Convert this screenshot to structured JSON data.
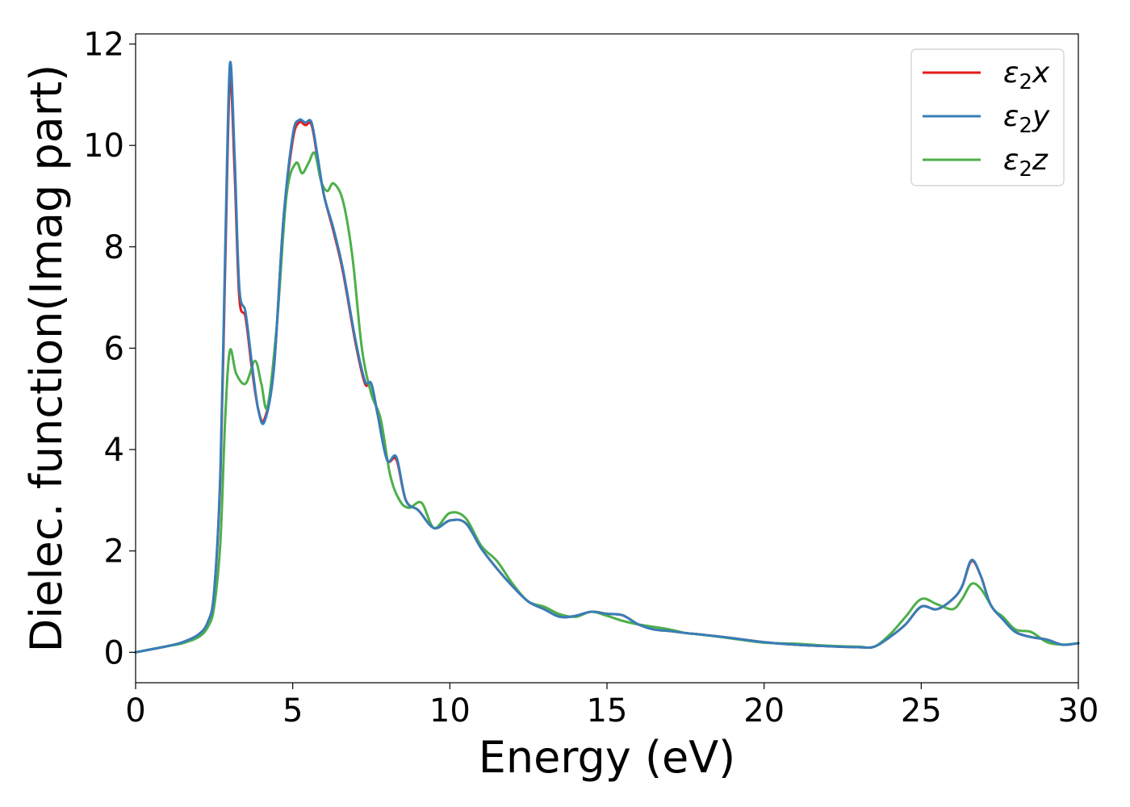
{
  "chart_data": {
    "type": "line",
    "xlabel": "Energy (eV)",
    "ylabel": "Dielec. function(Imag part)",
    "xlim": [
      0,
      30
    ],
    "ylim": [
      -0.6,
      12.2
    ],
    "xticks": [
      0,
      5,
      10,
      15,
      20,
      25,
      30
    ],
    "yticks": [
      0,
      2,
      4,
      6,
      8,
      10,
      12
    ],
    "grid": false,
    "legend_position": "top-right",
    "series": [
      {
        "name": "ε2x",
        "legend": {
          "base": "ε",
          "sub": "2",
          "tail": "x"
        },
        "color": "#e41a1c",
        "x": [
          0,
          1,
          1.5,
          2,
          2.3,
          2.5,
          2.7,
          2.85,
          3.0,
          3.15,
          3.3,
          3.5,
          3.7,
          3.9,
          4.1,
          4.4,
          4.7,
          5.0,
          5.2,
          5.4,
          5.6,
          5.8,
          6.0,
          6.3,
          6.6,
          7.0,
          7.3,
          7.5,
          7.7,
          8.0,
          8.3,
          8.6,
          9.0,
          9.5,
          10.0,
          10.5,
          11.0,
          11.5,
          12.0,
          12.5,
          13.0,
          13.5,
          14.0,
          14.5,
          15.0,
          15.5,
          16.0,
          16.5,
          17.0,
          17.5,
          18.0,
          19.0,
          20.0,
          21.0,
          22.0,
          23.0,
          23.5,
          24.0,
          24.5,
          25.0,
          25.5,
          26.0,
          26.3,
          26.6,
          26.9,
          27.2,
          27.6,
          28.0,
          28.5,
          29.0,
          29.5,
          30.0
        ],
        "y": [
          0.0,
          0.12,
          0.2,
          0.35,
          0.6,
          1.2,
          3.5,
          7.6,
          11.3,
          9.5,
          7.0,
          6.6,
          5.6,
          4.8,
          4.6,
          5.6,
          8.5,
          10.1,
          10.45,
          10.4,
          10.4,
          9.7,
          9.0,
          8.3,
          7.5,
          6.1,
          5.3,
          5.3,
          4.7,
          3.8,
          3.8,
          3.0,
          2.8,
          2.45,
          2.6,
          2.55,
          2.05,
          1.65,
          1.3,
          1.0,
          0.85,
          0.7,
          0.72,
          0.8,
          0.76,
          0.73,
          0.55,
          0.45,
          0.42,
          0.38,
          0.35,
          0.28,
          0.2,
          0.15,
          0.12,
          0.1,
          0.11,
          0.3,
          0.55,
          0.9,
          0.85,
          1.05,
          1.3,
          1.8,
          1.5,
          0.95,
          0.65,
          0.4,
          0.3,
          0.25,
          0.15,
          0.18
        ]
      },
      {
        "name": "ε2y",
        "legend": {
          "base": "ε",
          "sub": "2",
          "tail": "y"
        },
        "color": "#377eb8",
        "x": [
          0,
          1,
          1.5,
          2,
          2.3,
          2.5,
          2.7,
          2.85,
          3.0,
          3.15,
          3.3,
          3.5,
          3.7,
          3.9,
          4.1,
          4.4,
          4.7,
          5.0,
          5.2,
          5.4,
          5.6,
          5.8,
          6.0,
          6.3,
          6.6,
          7.0,
          7.3,
          7.5,
          7.7,
          8.0,
          8.3,
          8.6,
          9.0,
          9.5,
          10.0,
          10.5,
          11.0,
          11.5,
          12.0,
          12.5,
          13.0,
          13.5,
          14.0,
          14.5,
          15.0,
          15.5,
          16.0,
          16.5,
          17.0,
          17.5,
          18.0,
          19.0,
          20.0,
          21.0,
          22.0,
          23.0,
          23.5,
          24.0,
          24.5,
          25.0,
          25.5,
          26.0,
          26.3,
          26.6,
          26.9,
          27.2,
          27.6,
          28.0,
          28.5,
          29.0,
          29.5,
          30.0
        ],
        "y": [
          0.0,
          0.12,
          0.2,
          0.35,
          0.6,
          1.2,
          3.6,
          7.9,
          11.6,
          9.8,
          7.2,
          6.7,
          5.7,
          4.8,
          4.55,
          5.6,
          8.5,
          10.2,
          10.5,
          10.45,
          10.45,
          9.75,
          9.0,
          8.35,
          7.55,
          6.15,
          5.35,
          5.3,
          4.7,
          3.8,
          3.85,
          3.0,
          2.8,
          2.45,
          2.6,
          2.55,
          2.05,
          1.65,
          1.3,
          1.0,
          0.85,
          0.7,
          0.72,
          0.8,
          0.76,
          0.73,
          0.55,
          0.45,
          0.42,
          0.38,
          0.35,
          0.28,
          0.2,
          0.15,
          0.12,
          0.1,
          0.11,
          0.3,
          0.55,
          0.9,
          0.85,
          1.05,
          1.3,
          1.82,
          1.5,
          0.95,
          0.65,
          0.4,
          0.3,
          0.25,
          0.15,
          0.18
        ]
      },
      {
        "name": "ε2z",
        "legend": {
          "base": "ε",
          "sub": "2",
          "tail": "z"
        },
        "color": "#4daf4a",
        "x": [
          0,
          1,
          1.5,
          2,
          2.3,
          2.5,
          2.7,
          2.85,
          3.0,
          3.2,
          3.5,
          3.8,
          4.0,
          4.2,
          4.5,
          4.8,
          5.1,
          5.3,
          5.5,
          5.7,
          5.9,
          6.1,
          6.3,
          6.6,
          6.9,
          7.2,
          7.5,
          7.8,
          8.1,
          8.4,
          8.7,
          9.1,
          9.5,
          10.0,
          10.5,
          11.0,
          11.5,
          12.0,
          12.5,
          13.0,
          13.5,
          14.0,
          14.5,
          15.0,
          15.5,
          16.0,
          17.0,
          17.5,
          18.0,
          19.0,
          20.0,
          21.0,
          22.0,
          23.0,
          23.5,
          24.0,
          24.5,
          25.0,
          25.5,
          26.0,
          26.3,
          26.6,
          26.9,
          27.3,
          27.6,
          28.0,
          28.5,
          29.0,
          29.5,
          30.0
        ],
        "y": [
          0.0,
          0.12,
          0.18,
          0.3,
          0.5,
          0.9,
          2.2,
          4.6,
          5.95,
          5.5,
          5.3,
          5.75,
          5.3,
          4.85,
          6.5,
          9.0,
          9.65,
          9.45,
          9.65,
          9.85,
          9.3,
          9.1,
          9.25,
          8.9,
          7.8,
          6.0,
          5.1,
          4.6,
          3.5,
          3.0,
          2.85,
          2.95,
          2.45,
          2.75,
          2.65,
          2.1,
          1.8,
          1.35,
          1.0,
          0.9,
          0.75,
          0.7,
          0.8,
          0.72,
          0.62,
          0.55,
          0.45,
          0.38,
          0.35,
          0.27,
          0.19,
          0.17,
          0.13,
          0.11,
          0.11,
          0.35,
          0.7,
          1.05,
          0.95,
          0.85,
          1.05,
          1.35,
          1.25,
          0.85,
          0.7,
          0.45,
          0.4,
          0.2,
          0.15,
          0.18
        ]
      }
    ]
  }
}
